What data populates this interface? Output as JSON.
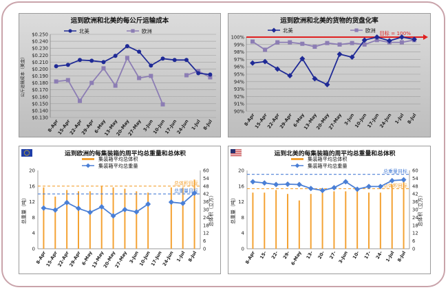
{
  "chart_data": [
    {
      "type": "line",
      "title": "运到欧洲和北美的每公斤运输成本",
      "ylabel": "公斤运输成本（美金）",
      "xlabel": "",
      "categories": [
        "8-Apr",
        "15-Apr",
        "22-Apr",
        "29-Apr",
        "6-May",
        "13-May",
        "20-May",
        "27-May",
        "3-Jun",
        "10-Jun",
        "17-Jun",
        "24-Jun",
        "1-Jul",
        "8-Jul"
      ],
      "ylim": [
        0.13,
        0.25
      ],
      "yticks": [
        "$0.130",
        "$0.140",
        "$0.150",
        "$0.160",
        "$0.170",
        "$0.180",
        "$0.190",
        "$0.200",
        "$0.210",
        "$0.220",
        "$0.230",
        "$0.240",
        "$0.250"
      ],
      "legend_position": "top",
      "grid": true,
      "series": [
        {
          "name": "北美",
          "color": "#1f2a96",
          "marker": "circle",
          "values": [
            0.204,
            0.206,
            0.213,
            0.212,
            0.21,
            0.219,
            0.233,
            0.225,
            0.205,
            0.215,
            0.213,
            0.213,
            0.194,
            0.192
          ]
        },
        {
          "name": "欧洲",
          "color": "#8c7db4",
          "marker": "square",
          "values": [
            0.182,
            0.184,
            0.154,
            0.18,
            0.201,
            0.176,
            0.216,
            0.187,
            0.19,
            0.149,
            null,
            0.191,
            0.197,
            0.188
          ]
        }
      ]
    },
    {
      "type": "line",
      "title": "运到欧洲和北美的货物的货盘化率",
      "xlabel": "",
      "ylabel": "",
      "categories": [
        "8-Apr",
        "15-Apr",
        "22-Apr",
        "29-Apr",
        "6-May",
        "13-May",
        "20-May",
        "27-May",
        "3-Jun",
        "10-Jun",
        "17-Jun",
        "24-Jun",
        "1-Jul",
        "8-Jul"
      ],
      "ylim": [
        90,
        100
      ],
      "yticks": [
        "90%",
        "91%",
        "92%",
        "93%",
        "94%",
        "95%",
        "96%",
        "97%",
        "98%",
        "99%",
        "100%"
      ],
      "legend_position": "top",
      "grid": true,
      "target_label": "目标 = 100%",
      "target_value": 100,
      "series": [
        {
          "name": "北美",
          "color": "#1f2a96",
          "marker": "diamond",
          "values": [
            96.5,
            96.7,
            95.7,
            94.8,
            97.1,
            94.4,
            93.6,
            97.7,
            97.3,
            99.6,
            100.0,
            99.5,
            100.0,
            99.7
          ]
        },
        {
          "name": "欧洲",
          "color": "#8c7db4",
          "marker": "square",
          "values": [
            99.4,
            98.3,
            99.3,
            99.3,
            99.1,
            98.7,
            99.2,
            99.0,
            99.2,
            99.0,
            99.6,
            99.3,
            99.3,
            99.6
          ]
        }
      ]
    },
    {
      "type": "bar",
      "title": "运到欧洲的每集装箱的周平均总重量和总体积",
      "categories": [
        "8-Apr",
        "15-Apr",
        "22-Apr",
        "29-Apr",
        "6-May",
        "13-May",
        "20-May",
        "27-May",
        "3-Jun",
        "10-Jun",
        "17-Jun",
        "24-Jun",
        "1-Jul",
        "8-Jul"
      ],
      "ylabel": "总重量（吨）",
      "y2label": "总体积（立方）",
      "ylim": [
        0,
        20
      ],
      "yticks": [
        "0",
        "4",
        "8",
        "12",
        "16",
        "20"
      ],
      "y2lim": [
        0,
        60
      ],
      "y2ticks": [
        "0",
        "6",
        "12",
        "18",
        "24",
        "30",
        "36",
        "42",
        "48",
        "54",
        "60"
      ],
      "legend_position": "top",
      "grid": false,
      "series": [
        {
          "name": "集装箱平均总体积",
          "color": "#f4a233",
          "axis": "right",
          "type": "bar",
          "values": [
            47,
            40,
            45,
            44,
            44,
            48,
            47,
            46,
            44,
            43,
            0,
            47,
            47,
            53
          ]
        },
        {
          "name": "集装箱平均总重量",
          "color": "#4a7fd6",
          "axis": "left",
          "type": "line",
          "values": [
            10.4,
            9.9,
            11.8,
            10.3,
            9.3,
            10.7,
            8.4,
            10.0,
            9.4,
            11.4,
            null,
            11.9,
            11.6,
            14.2
          ]
        }
      ],
      "reference_lines": [
        {
          "label": "总体积目标",
          "value": 48,
          "axis": "right",
          "color": "#f4a233"
        },
        {
          "label": "总重量目标",
          "value": 14,
          "axis": "left",
          "color": "#4a7fd6"
        }
      ]
    },
    {
      "type": "bar",
      "title": "运到北美的每集装箱的周平均总重量和总体积",
      "categories": [
        "8-Apr",
        "15-",
        "22-",
        "29-",
        "6-May",
        "13-",
        "20-",
        "27-",
        "3-Jun",
        "10-",
        "17-",
        "24-",
        "1-Jul",
        "8-Jul"
      ],
      "ylabel": "总重量（吨）",
      "y2label": "总体积（立方）",
      "ylim": [
        0,
        20
      ],
      "yticks": [
        "0",
        "4",
        "8",
        "12",
        "16",
        "20"
      ],
      "y2lim": [
        0,
        60
      ],
      "y2ticks": [
        "0",
        "6",
        "12",
        "18",
        "24",
        "30",
        "36",
        "42",
        "48",
        "54",
        "60"
      ],
      "legend_position": "top",
      "grid": false,
      "series": [
        {
          "name": "集装箱平均总体积",
          "color": "#f4a233",
          "axis": "right",
          "type": "bar",
          "values": [
            43,
            43,
            45,
            42,
            37,
            42,
            43,
            44,
            44,
            44,
            43,
            43,
            49,
            54
          ]
        },
        {
          "name": "集装箱平均总重量",
          "color": "#4a7fd6",
          "axis": "left",
          "type": "line",
          "values": [
            17.1,
            16.8,
            16.4,
            16.5,
            16.4,
            15.4,
            14.9,
            15.6,
            17.1,
            15.2,
            15.9,
            15.9,
            17.4,
            17.6
          ]
        }
      ],
      "reference_lines": [
        {
          "label": "总重量目标",
          "value": 19,
          "axis": "left",
          "color": "#4a7fd6"
        },
        {
          "label": "总体积目标",
          "value": 46,
          "axis": "right",
          "color": "#f4a233"
        }
      ]
    }
  ]
}
